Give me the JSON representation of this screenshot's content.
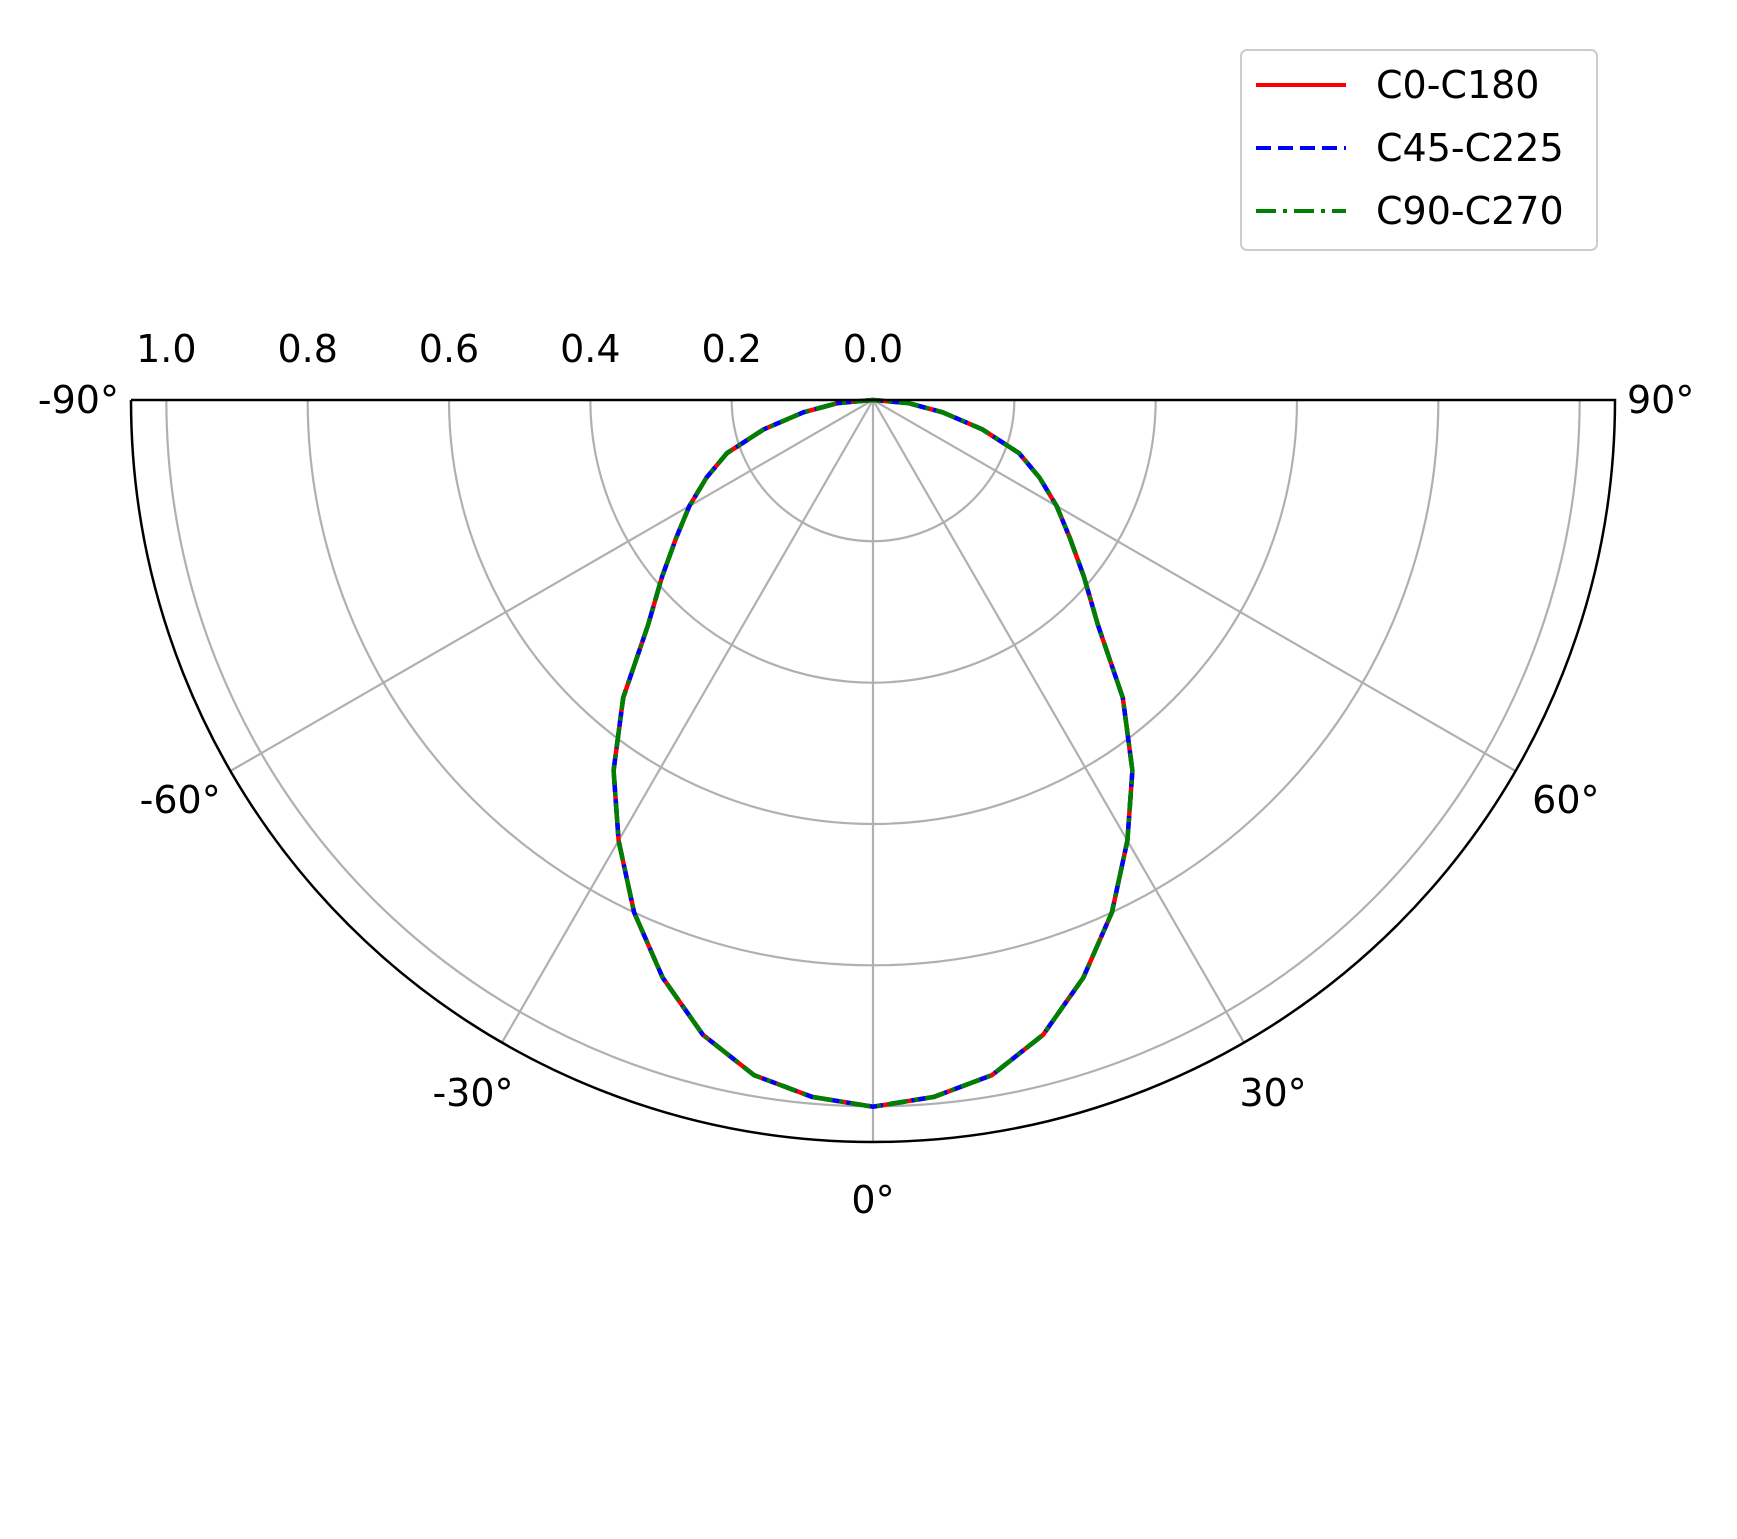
{
  "chart_data": {
    "type": "polar",
    "subtype": "half-polar (luminous intensity distribution)",
    "theta_range_deg": [
      -90,
      90
    ],
    "theta_zero_location": "bottom",
    "r_range": [
      0,
      1.05
    ],
    "r_direction": "outward",
    "r_ticks": [
      0.0,
      0.2,
      0.4,
      0.6,
      0.8,
      1.0
    ],
    "r_tick_labels": [
      "0.0",
      "0.2",
      "0.4",
      "0.6",
      "0.8",
      "1.0"
    ],
    "theta_ticks_deg": [
      -90,
      -60,
      -30,
      0,
      30,
      60,
      90
    ],
    "theta_tick_labels": [
      "-90°",
      "-60°",
      "-30°",
      "0°",
      "30°",
      "60°",
      "90°"
    ],
    "grid": true,
    "legend_position": "top-right",
    "theta_deg": [
      0,
      5,
      10,
      15,
      20,
      25,
      30,
      35,
      40,
      45,
      50,
      55,
      60,
      65,
      70,
      75,
      80,
      85,
      90
    ],
    "series": [
      {
        "name": "C0-C180",
        "color": "#ff0000",
        "line_style": "solid",
        "values": [
          1.0,
          0.99,
          0.97,
          0.93,
          0.87,
          0.8,
          0.72,
          0.64,
          0.55,
          0.45,
          0.39,
          0.34,
          0.3,
          0.26,
          0.22,
          0.16,
          0.1,
          0.05,
          0.0
        ]
      },
      {
        "name": "C45-C225",
        "color": "#0000ff",
        "line_style": "dashed",
        "values": [
          1.0,
          0.99,
          0.97,
          0.93,
          0.87,
          0.8,
          0.72,
          0.64,
          0.55,
          0.45,
          0.39,
          0.34,
          0.3,
          0.26,
          0.22,
          0.16,
          0.1,
          0.05,
          0.0
        ]
      },
      {
        "name": "C90-C270",
        "color": "#008000",
        "line_style": "dash-dot",
        "values": [
          1.0,
          0.99,
          0.97,
          0.93,
          0.87,
          0.8,
          0.72,
          0.64,
          0.55,
          0.45,
          0.39,
          0.34,
          0.3,
          0.26,
          0.22,
          0.16,
          0.1,
          0.05,
          0.0
        ]
      }
    ]
  }
}
